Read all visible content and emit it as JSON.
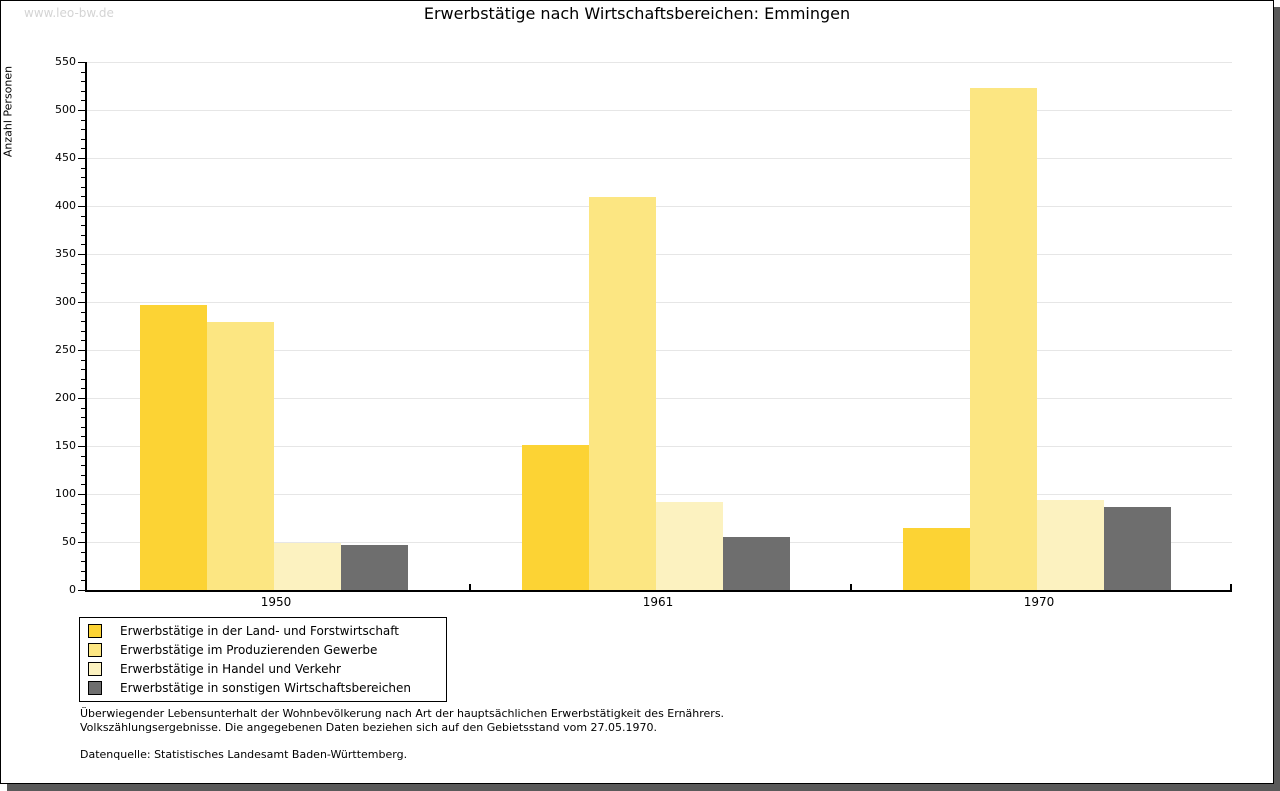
{
  "watermark": "www.leo-bw.de",
  "chart_data": {
    "type": "bar",
    "title": "Erwerbstätige nach Wirtschaftsbereichen: Emmingen",
    "xlabel": "",
    "ylabel": "Anzahl Personen",
    "ylim": [
      0,
      550
    ],
    "ytick_step": 50,
    "y_minor_tick_step": 10,
    "grid": "horizontal-major",
    "legend_position": "bottom-left",
    "categories": [
      "1950",
      "1961",
      "1970"
    ],
    "series": [
      {
        "name": "Erwerbstätige in der Land- und Forstwirtschaft",
        "color": "#fcd334",
        "values": [
          297,
          151,
          65
        ]
      },
      {
        "name": "Erwerbstätige im Produzierenden Gewerbe",
        "color": "#fce682",
        "values": [
          279,
          409,
          523
        ]
      },
      {
        "name": "Erwerbstätige in Handel und Verkehr",
        "color": "#fcf2c0",
        "values": [
          49,
          92,
          94
        ]
      },
      {
        "name": "Erwerbstätige in sonstigen Wirtschaftsbereichen",
        "color": "#6e6e6e",
        "values": [
          47,
          55,
          86
        ]
      }
    ],
    "axis_color": "#000000",
    "gridline_color": "#e6e6e6"
  },
  "footnotes": {
    "line1": "Überwiegender Lebensunterhalt der Wohnbevölkerung nach Art der hauptsächlichen Erwerbstätigkeit des Ernährers.",
    "line2": "Volkszählungsergebnisse. Die angegebenen Daten beziehen sich auf den Gebietsstand vom 27.05.1970.",
    "datasource": "Datenquelle: Statistisches Landesamt Baden-Württemberg."
  }
}
